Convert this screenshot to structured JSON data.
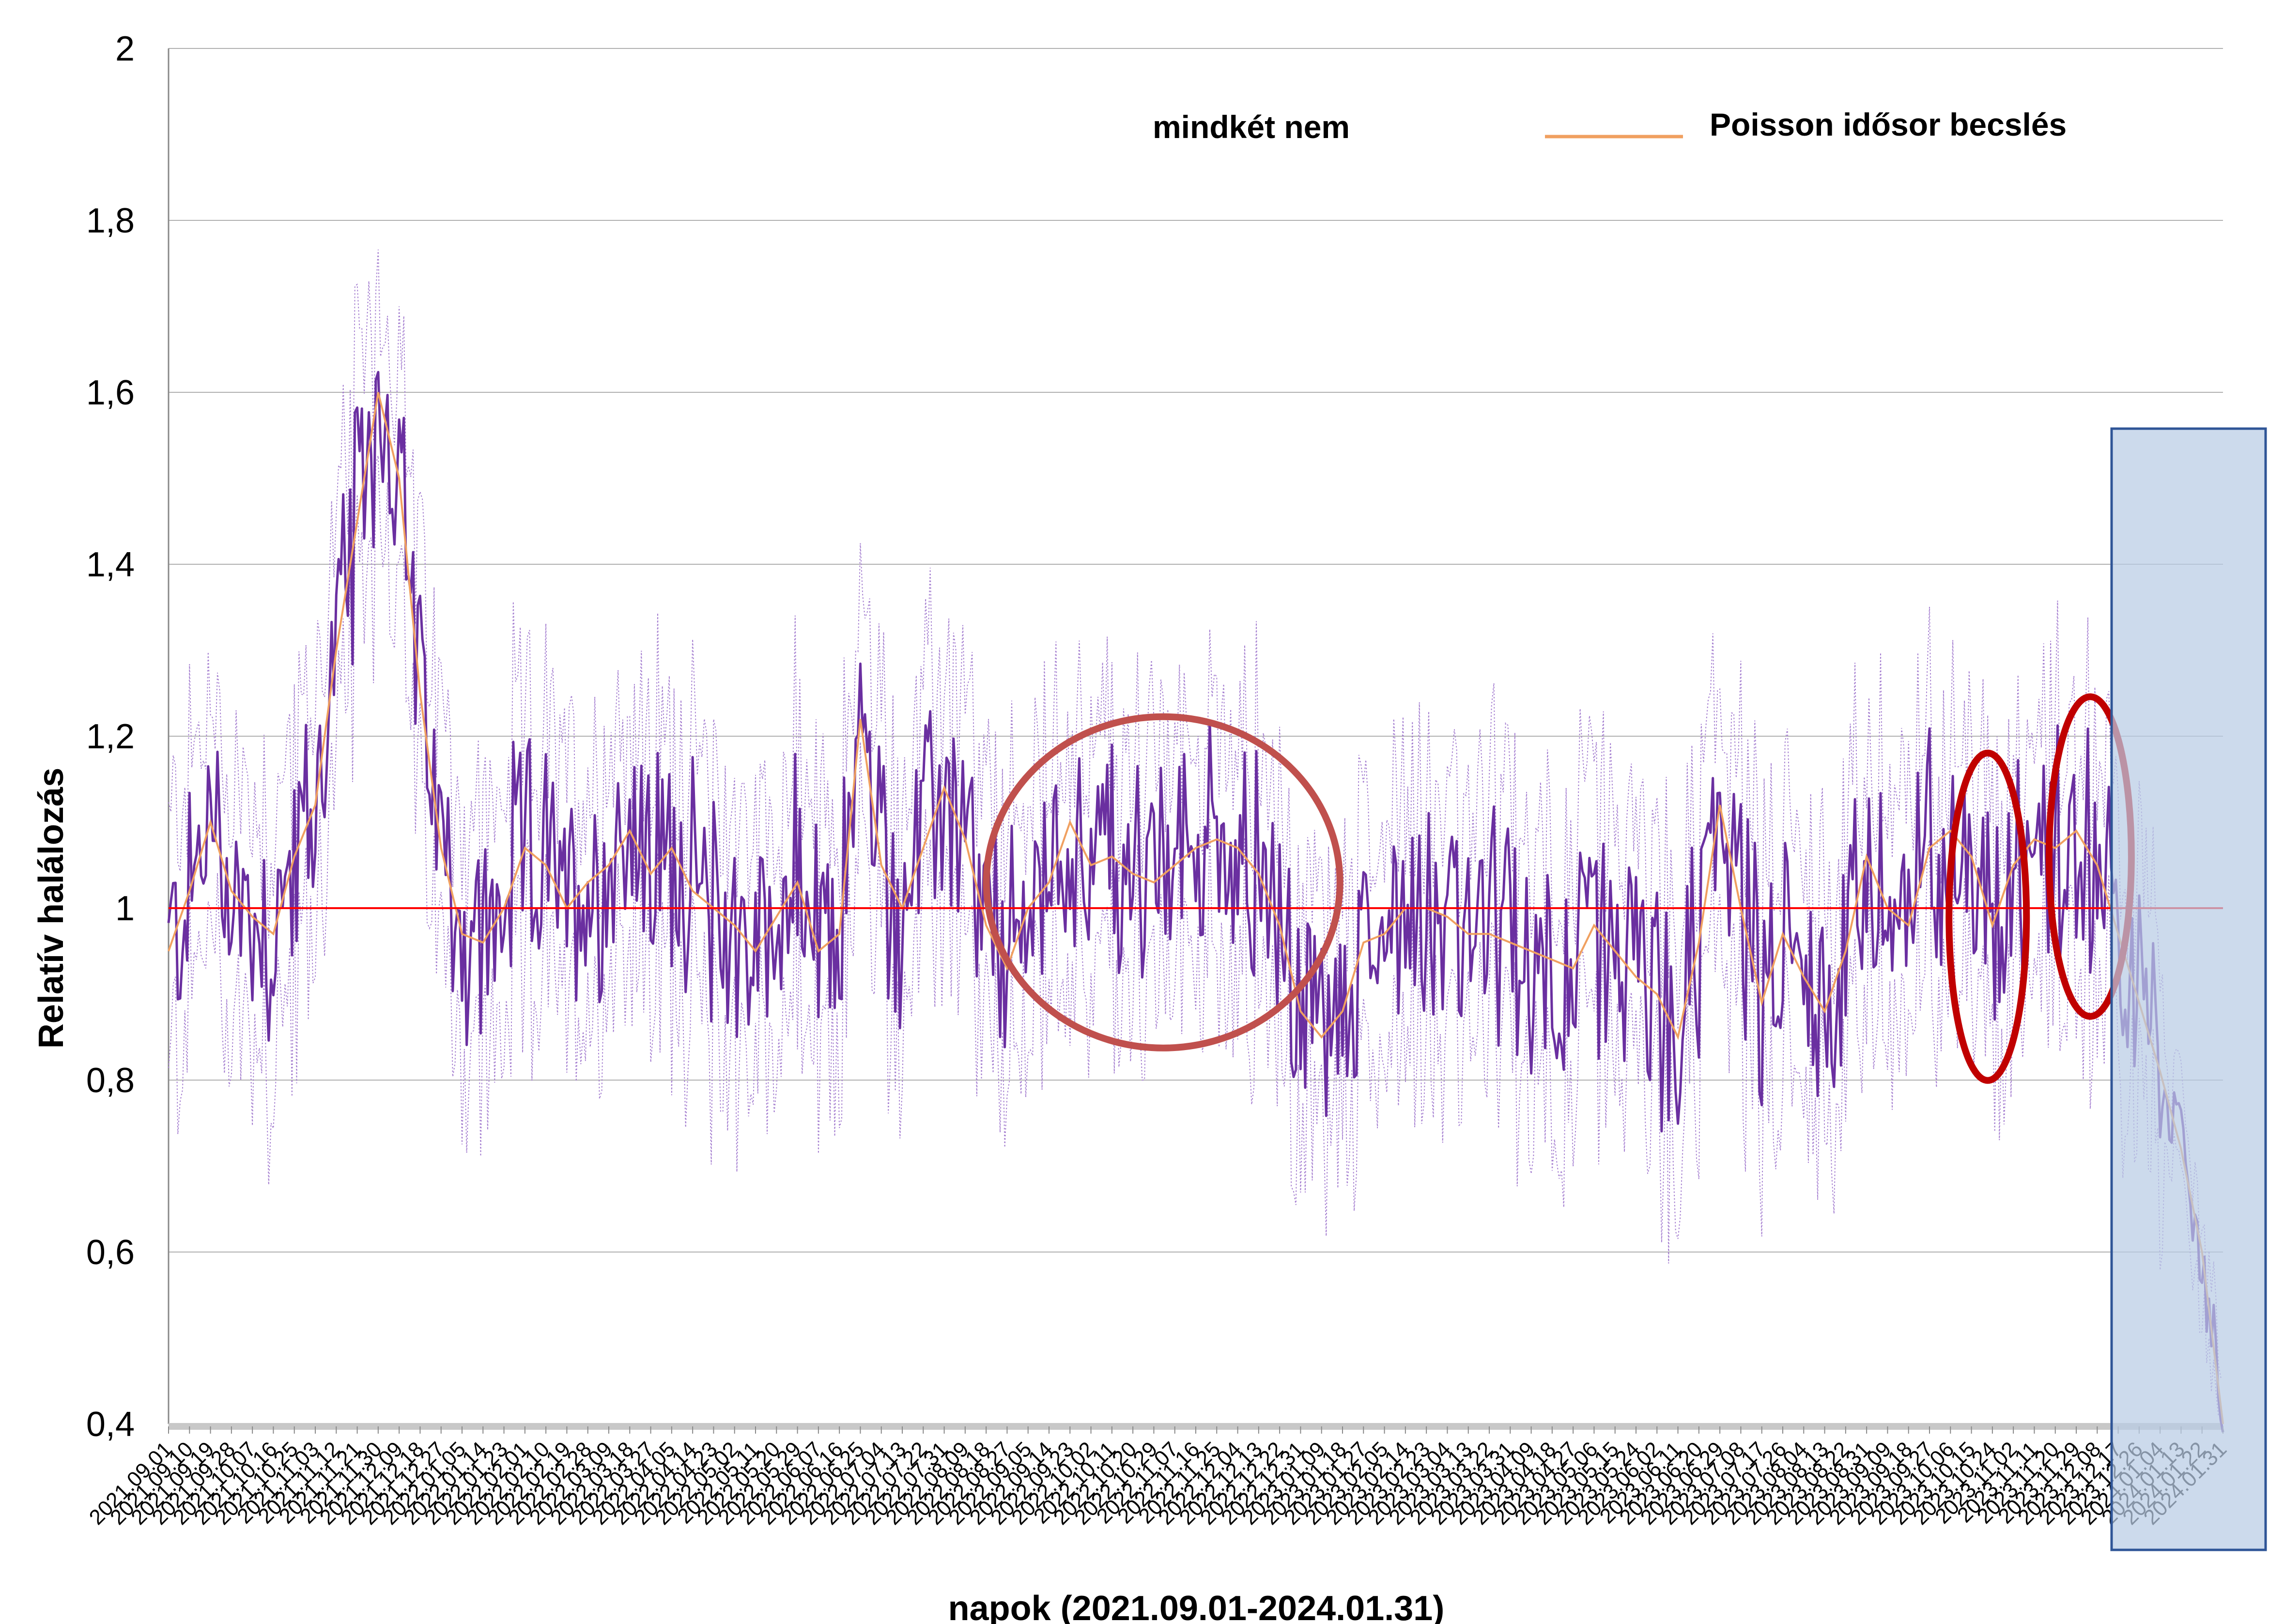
{
  "chart_data": {
    "type": "line",
    "xlabel": "napok (2021.09.01-2024.01.31)",
    "ylabel": "Relatív halálozás",
    "ylim": [
      0.4,
      2.0
    ],
    "yticks": [
      "0,4",
      "0,6",
      "0,8",
      "1",
      "1,2",
      "1,4",
      "1,6",
      "1,8",
      "2"
    ],
    "yticks_values": [
      0.4,
      0.6,
      0.8,
      1.0,
      1.2,
      1.4,
      1.6,
      1.8,
      2.0
    ],
    "x_start": "2021.09.01",
    "x_end": "2024.01.31",
    "x_tick_step_days": 9,
    "x_tick_label_first": "2021.09.01",
    "x_tick_label_last": "2024.01.31",
    "reference_line": 1.0,
    "grid": true,
    "legend": [
      {
        "label": "mindkét nem",
        "color": "#6a2fa0"
      },
      {
        "label": "Poisson idősor becslés",
        "color": "#f0a060"
      }
    ],
    "series": [
      {
        "name": "Poisson idősor becslés",
        "points": [
          [
            "2021.09.01",
            0.95
          ],
          [
            "2021.09.10",
            1.02
          ],
          [
            "2021.09.19",
            1.1
          ],
          [
            "2021.09.28",
            1.02
          ],
          [
            "2021.10.07",
            0.99
          ],
          [
            "2021.10.16",
            0.97
          ],
          [
            "2021.10.25",
            1.06
          ],
          [
            "2021.11.03",
            1.12
          ],
          [
            "2021.11.12",
            1.3
          ],
          [
            "2021.11.21",
            1.45
          ],
          [
            "2021.11.30",
            1.6
          ],
          [
            "2021.12.09",
            1.5
          ],
          [
            "2021.12.18",
            1.25
          ],
          [
            "2021.12.27",
            1.07
          ],
          [
            "2022.01.05",
            0.97
          ],
          [
            "2022.01.14",
            0.96
          ],
          [
            "2022.01.23",
            1.0
          ],
          [
            "2022.02.01",
            1.07
          ],
          [
            "2022.02.10",
            1.05
          ],
          [
            "2022.02.19",
            1.0
          ],
          [
            "2022.02.28",
            1.03
          ],
          [
            "2022.03.09",
            1.05
          ],
          [
            "2022.03.18",
            1.09
          ],
          [
            "2022.03.27",
            1.04
          ],
          [
            "2022.04.05",
            1.07
          ],
          [
            "2022.04.14",
            1.02
          ],
          [
            "2022.04.23",
            1.0
          ],
          [
            "2022.05.02",
            0.98
          ],
          [
            "2022.05.11",
            0.95
          ],
          [
            "2022.05.20",
            0.99
          ],
          [
            "2022.05.29",
            1.03
          ],
          [
            "2022.06.07",
            0.95
          ],
          [
            "2022.06.16",
            0.97
          ],
          [
            "2022.06.25",
            1.22
          ],
          [
            "2022.07.04",
            1.05
          ],
          [
            "2022.07.13",
            1.0
          ],
          [
            "2022.07.22",
            1.07
          ],
          [
            "2022.07.31",
            1.14
          ],
          [
            "2022.08.09",
            1.08
          ],
          [
            "2022.08.18",
            0.98
          ],
          [
            "2022.08.27",
            0.93
          ],
          [
            "2022.09.05",
            1.0
          ],
          [
            "2022.09.14",
            1.03
          ],
          [
            "2022.09.23",
            1.1
          ],
          [
            "2022.10.02",
            1.05
          ],
          [
            "2022.10.11",
            1.06
          ],
          [
            "2022.10.20",
            1.04
          ],
          [
            "2022.10.29",
            1.03
          ],
          [
            "2022.11.07",
            1.05
          ],
          [
            "2022.11.16",
            1.07
          ],
          [
            "2022.11.25",
            1.08
          ],
          [
            "2022.12.04",
            1.07
          ],
          [
            "2022.12.13",
            1.04
          ],
          [
            "2022.12.22",
            0.98
          ],
          [
            "2022.12.31",
            0.88
          ],
          [
            "2023.01.09",
            0.85
          ],
          [
            "2023.01.18",
            0.88
          ],
          [
            "2023.01.27",
            0.96
          ],
          [
            "2023.02.05",
            0.97
          ],
          [
            "2023.02.14",
            1.0
          ],
          [
            "2023.02.23",
            1.0
          ],
          [
            "2023.03.04",
            0.99
          ],
          [
            "2023.03.13",
            0.97
          ],
          [
            "2023.03.22",
            0.97
          ],
          [
            "2023.03.31",
            0.96
          ],
          [
            "2023.04.09",
            0.95
          ],
          [
            "2023.04.18",
            0.94
          ],
          [
            "2023.04.27",
            0.93
          ],
          [
            "2023.05.06",
            0.98
          ],
          [
            "2023.05.15",
            0.95
          ],
          [
            "2023.05.24",
            0.92
          ],
          [
            "2023.06.02",
            0.9
          ],
          [
            "2023.06.11",
            0.85
          ],
          [
            "2023.06.20",
            0.96
          ],
          [
            "2023.06.29",
            1.12
          ],
          [
            "2023.07.08",
            1.0
          ],
          [
            "2023.07.17",
            0.89
          ],
          [
            "2023.07.26",
            0.97
          ],
          [
            "2023.08.04",
            0.92
          ],
          [
            "2023.08.13",
            0.88
          ],
          [
            "2023.08.22",
            0.95
          ],
          [
            "2023.08.31",
            1.06
          ],
          [
            "2023.09.09",
            1.0
          ],
          [
            "2023.09.18",
            0.98
          ],
          [
            "2023.09.27",
            1.07
          ],
          [
            "2023.10.06",
            1.09
          ],
          [
            "2023.10.15",
            1.06
          ],
          [
            "2023.10.24",
            0.98
          ],
          [
            "2023.11.02",
            1.05
          ],
          [
            "2023.11.11",
            1.08
          ],
          [
            "2023.11.20",
            1.07
          ],
          [
            "2023.11.29",
            1.09
          ],
          [
            "2023.12.08",
            1.05
          ],
          [
            "2023.12.17",
            0.97
          ],
          [
            "2023.12.26",
            0.89
          ],
          [
            "2024.01.04",
            0.81
          ],
          [
            "2024.01.13",
            0.72
          ],
          [
            "2024.01.22",
            0.6
          ],
          [
            "2024.01.31",
            0.4
          ]
        ]
      }
    ]
  }
}
